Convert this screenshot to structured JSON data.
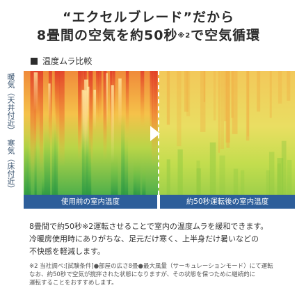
{
  "headline": {
    "line1": "“エクセルブレード”だから",
    "line2_main": "8畳間の空気を約50秒",
    "line2_note": "※2",
    "line2_tail": "で空気循環"
  },
  "section_title": "温度ムラ比較",
  "side_labels": {
    "warm": "暖気（天井付近）",
    "cold": "寒気（床付近）"
  },
  "panels": {
    "before_caption": "使用前の室内温度",
    "after_caption": "約50秒運転後の室内温度"
  },
  "body_text": [
    "8畳間で約50秒※2運転させることで室内の温度ムラを緩和できます。",
    "冷暖房使用時にありがちな、足元だけ寒く、上半身だけ暑いなどの",
    "不快感を軽減します。"
  ],
  "footnote": [
    "※2 当社調べ:[試験条件]●部屋の広さ8畳●最大風量（サーキュレーションモード）にて運転",
    "なお、約50秒で空気が撹拌された状態になりますが、その状態を保つために継続的に",
    "運転することをおすすめします。"
  ],
  "colors": {
    "caption_bg": "#2d5e9a",
    "side_label": "#3a5470",
    "hot": "#e8502a",
    "warm": "#f5b83a",
    "cool": "#9ac93a",
    "cold": "#3aa64a"
  },
  "icons": {
    "section_marker": "black-square-icon",
    "divider_arrow": "right-arrow-icon"
  }
}
